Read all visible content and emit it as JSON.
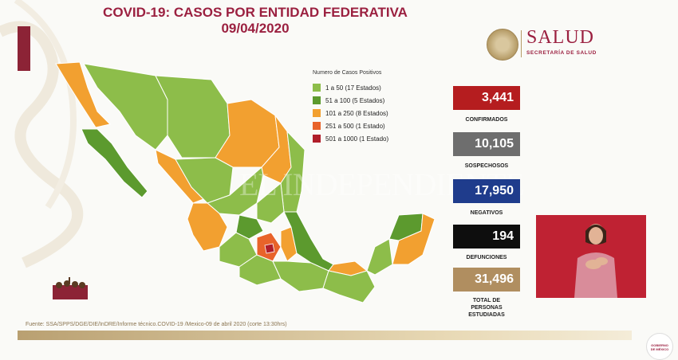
{
  "header": {
    "title_line1": "COVID-19: CASOS POR ENTIDAD FEDERATIVA",
    "title_line2": "09/04/2020"
  },
  "logo": {
    "main": "SALUD",
    "sub": "SECRETARÍA DE SALUD"
  },
  "legend": {
    "title": "Numero de Casos Positivos",
    "items": [
      {
        "label": "1 a   50  (17 Estados)",
        "color": "#8dbd4a"
      },
      {
        "label": "51 a  100  (5 Estados)",
        "color": "#5c9a2e"
      },
      {
        "label": "101 a  250  (8 Estados)",
        "color": "#f2a030"
      },
      {
        "label": "251 a  500  (1 Estado)",
        "color": "#e8632a"
      },
      {
        "label": "501 a 1000  (1 Estado)",
        "color": "#b01e2a"
      }
    ]
  },
  "stats": [
    {
      "value": "3,441",
      "label": "CONFIRMADOS",
      "color": "#b51d1f"
    },
    {
      "value": "10,105",
      "label": "SOSPECHOSOS",
      "color": "#6e6e6e"
    },
    {
      "value": "17,950",
      "label": "NEGATIVOS",
      "color": "#1f3c8c"
    },
    {
      "value": "194",
      "label": "DEFUNCIONES",
      "color": "#0e0e0e"
    },
    {
      "value": "31,496",
      "label": "TOTAL DE PERSONAS ESTUDIADAS",
      "color": "#b08e60"
    }
  ],
  "stat_total_label_lines": [
    "TOTAL DE",
    "PERSONAS",
    "ESTUDIADAS"
  ],
  "source": "Fuente: SSA/SPPS/DGE/DIE/InDRE/Informe técnico.COVID-19 /Mexico-09 de abril 2020 (corte 13:30hrs)",
  "watermark": "EL INDEPENDIENTE",
  "gob_logo": "GOBIERNO DE MÉXICO",
  "icons": {
    "seal": "mexico-seal-icon",
    "gob": "gobierno-mexico-logo-icon",
    "illustration": "history-figures-icon"
  }
}
